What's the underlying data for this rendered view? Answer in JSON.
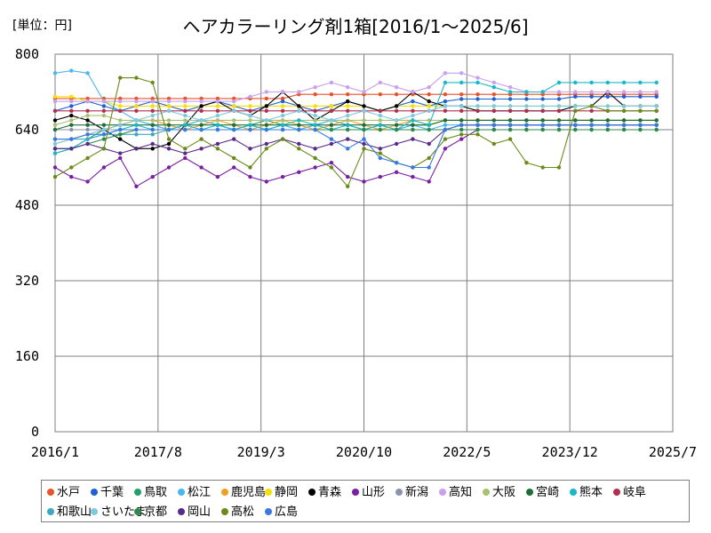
{
  "unit_label": "[単位：円]",
  "chart_data": {
    "type": "line",
    "title": "ヘアカラーリング剤1箱[2016/1～2025/6]",
    "xlabel": "",
    "ylabel": "",
    "ylim": [
      0,
      800
    ],
    "y_ticks": [
      "0",
      "160",
      "320",
      "480",
      "640",
      "800"
    ],
    "x_ticks": [
      "2016/1",
      "2017/8",
      "2019/3",
      "2020/10",
      "2022/5",
      "2023/12",
      "2025/7"
    ],
    "grid": true,
    "legend_position": "bottom",
    "note": "Values approximated from the plot, sampled quarterly (Jan, Apr, Jul, Oct) from 2016/1 to 2025/4.",
    "x": [
      "2016/1",
      "2016/4",
      "2016/7",
      "2016/10",
      "2017/1",
      "2017/4",
      "2017/7",
      "2017/10",
      "2018/1",
      "2018/4",
      "2018/7",
      "2018/10",
      "2019/1",
      "2019/4",
      "2019/7",
      "2019/10",
      "2020/1",
      "2020/4",
      "2020/7",
      "2020/10",
      "2021/1",
      "2021/4",
      "2021/7",
      "2021/10",
      "2022/1",
      "2022/4",
      "2022/7",
      "2022/10",
      "2023/1",
      "2023/4",
      "2023/7",
      "2023/10",
      "2024/1",
      "2024/4",
      "2024/7",
      "2024/10",
      "2025/1",
      "2025/4"
    ],
    "series": [
      {
        "name": "水戸",
        "color": "#e8542a",
        "values": [
          706,
          706,
          706,
          706,
          706,
          706,
          706,
          706,
          706,
          706,
          706,
          706,
          706,
          706,
          706,
          715,
          715,
          715,
          715,
          715,
          715,
          715,
          715,
          715,
          715,
          715,
          715,
          715,
          715,
          715,
          715,
          715,
          715,
          715,
          715,
          715,
          715,
          715
        ]
      },
      {
        "name": "千葉",
        "color": "#2060d0",
        "values": [
          680,
          690,
          700,
          690,
          680,
          690,
          700,
          690,
          680,
          690,
          700,
          690,
          680,
          690,
          700,
          690,
          680,
          690,
          700,
          690,
          680,
          690,
          700,
          690,
          700,
          705,
          705,
          705,
          705,
          705,
          705,
          705,
          710,
          710,
          710,
          710,
          710,
          710
        ]
      },
      {
        "name": "鳥取",
        "color": "#22a06b",
        "values": [
          590,
          600,
          620,
          640,
          650,
          660,
          650,
          640,
          650,
          660,
          650,
          640,
          650,
          660,
          650,
          640,
          650,
          660,
          650,
          640,
          650,
          640,
          650,
          650,
          660,
          660,
          660,
          660,
          660,
          660,
          660,
          660,
          660,
          660,
          660,
          660,
          660,
          660
        ]
      },
      {
        "name": "松江",
        "color": "#4ab6ee",
        "values": [
          760,
          765,
          760,
          700,
          680,
          660,
          650,
          640,
          650,
          660,
          650,
          640,
          650,
          640,
          650,
          640,
          650,
          660,
          650,
          640,
          650,
          640,
          650,
          640,
          650,
          650,
          650,
          650,
          650,
          650,
          650,
          650,
          650,
          650,
          650,
          650,
          650,
          650
        ]
      },
      {
        "name": "鹿児島",
        "color": "#f0a020",
        "values": [
          610,
          620,
          630,
          640,
          650,
          660,
          660,
          650,
          640,
          650,
          660,
          650,
          640,
          650,
          660,
          650,
          640,
          650,
          660,
          650,
          640,
          650,
          660,
          650,
          660,
          660,
          660,
          660,
          660,
          660,
          660,
          660,
          660,
          660,
          660,
          660,
          660,
          660
        ]
      },
      {
        "name": "静岡",
        "color": "#f5e000",
        "values": [
          710,
          710,
          700,
          700,
          690,
          690,
          690,
          690,
          690,
          690,
          690,
          690,
          690,
          690,
          690,
          690,
          690,
          690,
          690,
          690,
          680,
          690,
          690,
          690,
          690,
          690,
          690,
          690,
          690,
          690,
          690,
          690,
          690,
          690,
          690,
          690,
          690,
          690
        ]
      },
      {
        "name": "青森",
        "color": "#000000",
        "values": [
          660,
          670,
          660,
          640,
          620,
          600,
          600,
          610,
          650,
          690,
          700,
          680,
          670,
          690,
          720,
          690,
          660,
          680,
          700,
          690,
          680,
          690,
          720,
          700,
          690,
          690,
          680,
          680,
          680,
          680,
          680,
          680,
          690,
          690,
          720,
          690,
          690,
          690
        ]
      },
      {
        "name": "山形",
        "color": "#7a1fa2",
        "values": [
          560,
          540,
          530,
          560,
          580,
          520,
          540,
          560,
          580,
          560,
          540,
          560,
          540,
          530,
          540,
          550,
          560,
          570,
          540,
          530,
          540,
          550,
          540,
          530,
          600,
          620,
          640,
          640,
          640,
          640,
          640,
          640,
          640,
          640,
          640,
          640,
          640,
          640
        ]
      },
      {
        "name": "新潟",
        "color": "#8a93a8",
        "values": [
          640,
          640,
          640,
          640,
          640,
          640,
          640,
          640,
          640,
          640,
          640,
          640,
          640,
          640,
          640,
          640,
          640,
          640,
          640,
          640,
          640,
          640,
          640,
          640,
          640,
          650,
          650,
          650,
          650,
          650,
          650,
          650,
          650,
          650,
          650,
          650,
          650,
          650
        ]
      },
      {
        "name": "高知",
        "color": "#c8a0ee",
        "values": [
          700,
          700,
          700,
          700,
          700,
          700,
          700,
          700,
          700,
          700,
          700,
          700,
          710,
          720,
          720,
          720,
          730,
          740,
          730,
          720,
          740,
          730,
          720,
          730,
          760,
          760,
          750,
          740,
          730,
          720,
          720,
          720,
          720,
          720,
          720,
          720,
          720,
          720
        ]
      },
      {
        "name": "大阪",
        "color": "#a8c070",
        "values": [
          650,
          660,
          670,
          670,
          660,
          660,
          660,
          660,
          660,
          660,
          660,
          660,
          660,
          660,
          660,
          660,
          660,
          660,
          660,
          660,
          660,
          660,
          660,
          660,
          660,
          660,
          660,
          660,
          660,
          660,
          660,
          660,
          660,
          660,
          660,
          660,
          660,
          660
        ]
      },
      {
        "name": "宮崎",
        "color": "#1f6f3a",
        "values": [
          640,
          650,
          650,
          650,
          650,
          650,
          650,
          650,
          650,
          650,
          650,
          650,
          650,
          650,
          650,
          650,
          650,
          650,
          650,
          650,
          650,
          650,
          650,
          650,
          660,
          660,
          660,
          660,
          660,
          660,
          660,
          660,
          660,
          660,
          660,
          660,
          660,
          660
        ]
      },
      {
        "name": "熊本",
        "color": "#19b8c8",
        "values": [
          590,
          600,
          620,
          630,
          640,
          650,
          640,
          640,
          650,
          640,
          650,
          640,
          650,
          640,
          650,
          660,
          650,
          640,
          650,
          640,
          650,
          640,
          660,
          650,
          740,
          740,
          740,
          730,
          720,
          720,
          720,
          740,
          740,
          740,
          740,
          740,
          740,
          740
        ]
      },
      {
        "name": "岐阜",
        "color": "#b03050",
        "values": [
          680,
          680,
          680,
          680,
          680,
          680,
          680,
          680,
          680,
          680,
          680,
          680,
          680,
          680,
          680,
          680,
          680,
          680,
          680,
          680,
          680,
          680,
          680,
          680,
          680,
          680,
          680,
          680,
          680,
          680,
          680,
          680,
          680,
          680,
          680,
          680,
          680,
          680
        ]
      },
      {
        "name": "和歌山",
        "color": "#3fa8c0",
        "values": [
          620,
          620,
          620,
          630,
          630,
          630,
          630,
          640,
          640,
          640,
          640,
          640,
          640,
          640,
          640,
          640,
          640,
          640,
          640,
          640,
          640,
          640,
          640,
          640,
          640,
          640,
          640,
          640,
          640,
          640,
          640,
          640,
          640,
          640,
          640,
          640,
          640,
          640
        ]
      },
      {
        "name": "さいたま",
        "color": "#7ec8e0",
        "values": [
          610,
          620,
          630,
          640,
          650,
          660,
          670,
          680,
          670,
          660,
          670,
          680,
          670,
          660,
          670,
          680,
          670,
          660,
          670,
          680,
          670,
          660,
          670,
          680,
          690,
          690,
          690,
          690,
          690,
          690,
          690,
          690,
          690,
          690,
          690,
          690,
          690,
          690
        ]
      },
      {
        "name": "京都",
        "color": "#2f8a4a",
        "values": [
          600,
          600,
          610,
          620,
          630,
          640,
          640,
          640,
          640,
          640,
          640,
          640,
          640,
          640,
          640,
          640,
          640,
          640,
          640,
          640,
          640,
          640,
          640,
          640,
          640,
          640,
          640,
          640,
          640,
          640,
          640,
          640,
          640,
          640,
          640,
          640,
          640,
          640
        ]
      },
      {
        "name": "岡山",
        "color": "#5a2a8a",
        "values": [
          600,
          600,
          610,
          600,
          590,
          600,
          610,
          600,
          590,
          600,
          610,
          620,
          600,
          610,
          620,
          610,
          600,
          610,
          620,
          610,
          600,
          610,
          620,
          610,
          640,
          650,
          650,
          650,
          650,
          650,
          650,
          650,
          650,
          650,
          650,
          650,
          650,
          650
        ]
      },
      {
        "name": "高松",
        "color": "#6b8a1a",
        "values": [
          540,
          560,
          580,
          600,
          750,
          750,
          740,
          620,
          600,
          620,
          600,
          580,
          560,
          600,
          620,
          600,
          580,
          560,
          520,
          600,
          590,
          570,
          560,
          580,
          620,
          630,
          630,
          610,
          620,
          570,
          560,
          560,
          680,
          690,
          680,
          680,
          680,
          680
        ]
      },
      {
        "name": "広島",
        "color": "#3a7ae0",
        "values": [
          620,
          620,
          630,
          630,
          640,
          640,
          640,
          640,
          640,
          640,
          640,
          640,
          640,
          640,
          640,
          640,
          640,
          620,
          600,
          620,
          580,
          570,
          560,
          560,
          640,
          650,
          650,
          650,
          650,
          650,
          650,
          650,
          650,
          650,
          650,
          650,
          650,
          650
        ]
      }
    ]
  }
}
